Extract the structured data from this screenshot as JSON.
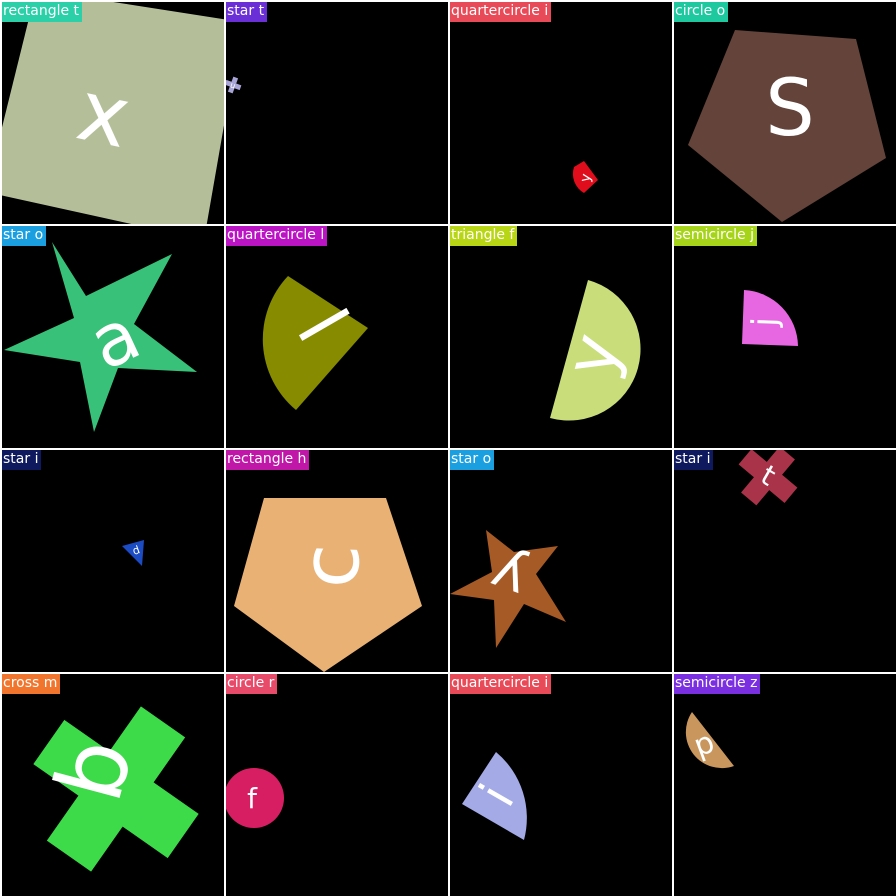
{
  "cells": [
    {
      "label": "rectangle t",
      "label_color": "#2bd0a8",
      "shape": "rectangle",
      "shape_color": "#b4bf9a",
      "letter": "x"
    },
    {
      "label": "star t",
      "label_color": "#6a2fd6",
      "shape": "cross",
      "shape_color": "#a9a4d6",
      "letter": "u"
    },
    {
      "label": "quartercircle i",
      "label_color": "#e84a58",
      "shape": "quartercircle",
      "shape_color": "#e00e1c",
      "letter": "y"
    },
    {
      "label": "circle o",
      "label_color": "#1fc9a0",
      "shape": "pentagon",
      "shape_color": "#63433a",
      "letter": "S"
    },
    {
      "label": "star o",
      "label_color": "#1a9fe0",
      "shape": "star",
      "shape_color": "#38c178",
      "letter": "a"
    },
    {
      "label": "quartercircle l",
      "label_color": "#bb14c4",
      "shape": "quartercircle",
      "shape_color": "#878b00",
      "letter": "l"
    },
    {
      "label": "triangle f",
      "label_color": "#b8d614",
      "shape": "semicircle",
      "shape_color": "#c9dd7a",
      "letter": "y"
    },
    {
      "label": "semicircle j",
      "label_color": "#a6d418",
      "shape": "quartercircle",
      "shape_color": "#e766e2",
      "letter": "j"
    },
    {
      "label": "star i",
      "label_color": "#0f1a5e",
      "shape": "triangle",
      "shape_color": "#1b4cc4",
      "letter": "d"
    },
    {
      "label": "rectangle h",
      "label_color": "#c017a8",
      "shape": "pentagon",
      "shape_color": "#e9b274",
      "letter": "c"
    },
    {
      "label": "star o",
      "label_color": "#1a9fe0",
      "shape": "star",
      "shape_color": "#a65a25",
      "letter": "y"
    },
    {
      "label": "star i",
      "label_color": "#0f1a5e",
      "shape": "cross",
      "shape_color": "#a93349",
      "letter": "t"
    },
    {
      "label": "cross m",
      "label_color": "#f2752e",
      "shape": "cross",
      "shape_color": "#3ddb4a",
      "letter": "b"
    },
    {
      "label": "circle r",
      "label_color": "#e84a6a",
      "shape": "circle",
      "shape_color": "#d81e62",
      "letter": "f"
    },
    {
      "label": "quartercircle i",
      "label_color": "#e84a58",
      "shape": "quartercircle",
      "shape_color": "#a3aae6",
      "letter": "i"
    },
    {
      "label": "semicircle z",
      "label_color": "#7a2fe0",
      "shape": "semicircle",
      "shape_color": "#c9975e",
      "letter": "p"
    }
  ]
}
